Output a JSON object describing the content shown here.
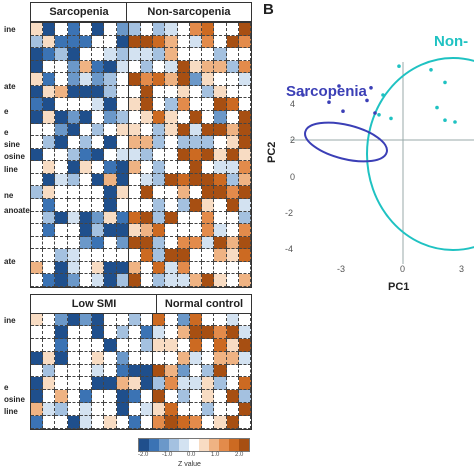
{
  "panel_a": {
    "group_labels": [
      "Sarcopenia",
      "Non-sarcopenia"
    ],
    "row_labels": [
      "ine",
      "",
      "ate",
      "e",
      "e",
      "sine",
      "osine",
      "line",
      "ne",
      "anoate",
      "",
      "ate"
    ]
  },
  "panel_c": {
    "group_labels": [
      "Low SMI",
      "Normal control"
    ],
    "row_labels": [
      "ine",
      "",
      "",
      "e",
      "osine",
      "line"
    ]
  },
  "legend": {
    "title": "Z value",
    "ticks": [
      "-2.0",
      "-1.0",
      "0.0",
      "1.0",
      "2.0"
    ],
    "colors": [
      "#1f4f8c",
      "#3b73b4",
      "#6b98c9",
      "#a4c1e0",
      "#d3e2f1",
      "#ffffff",
      "#f8dcc3",
      "#efb383",
      "#e38b4b",
      "#cc6a22",
      "#a74f12"
    ]
  },
  "panel_b": {
    "panel_letter": "B",
    "ylabel": "PC2",
    "xlabel": "PC1",
    "group1_label": "Sarcopenia",
    "group2_label": "Non-",
    "yticks": [
      "4",
      "2",
      "0",
      "-2",
      "-4"
    ],
    "xticks": [
      "-3",
      "0",
      "3"
    ],
    "group1_color": "#3b3fb6",
    "group2_color": "#1fc2c2"
  },
  "chart_data": {
    "type": "scatter",
    "xlabel": "PC1",
    "ylabel": "PC2",
    "series": [
      {
        "name": "Sarcopenia",
        "points": [
          [
            -5.0,
            2.5
          ],
          [
            -3.7,
            2.1
          ],
          [
            -3.2,
            3.0
          ],
          [
            -3.0,
            1.6
          ],
          [
            -1.8,
            2.2
          ],
          [
            -1.6,
            2.9
          ],
          [
            -1.4,
            1.5
          ]
        ]
      },
      {
        "name": "Non-sarcopenia",
        "points": [
          [
            -1.2,
            1.4
          ],
          [
            -1.0,
            2.5
          ],
          [
            -0.6,
            1.2
          ],
          [
            -0.2,
            4.1
          ],
          [
            1.4,
            3.9
          ],
          [
            1.7,
            1.8
          ],
          [
            2.1,
            3.2
          ],
          [
            2.1,
            1.1
          ],
          [
            2.6,
            1.0
          ]
        ]
      }
    ]
  }
}
